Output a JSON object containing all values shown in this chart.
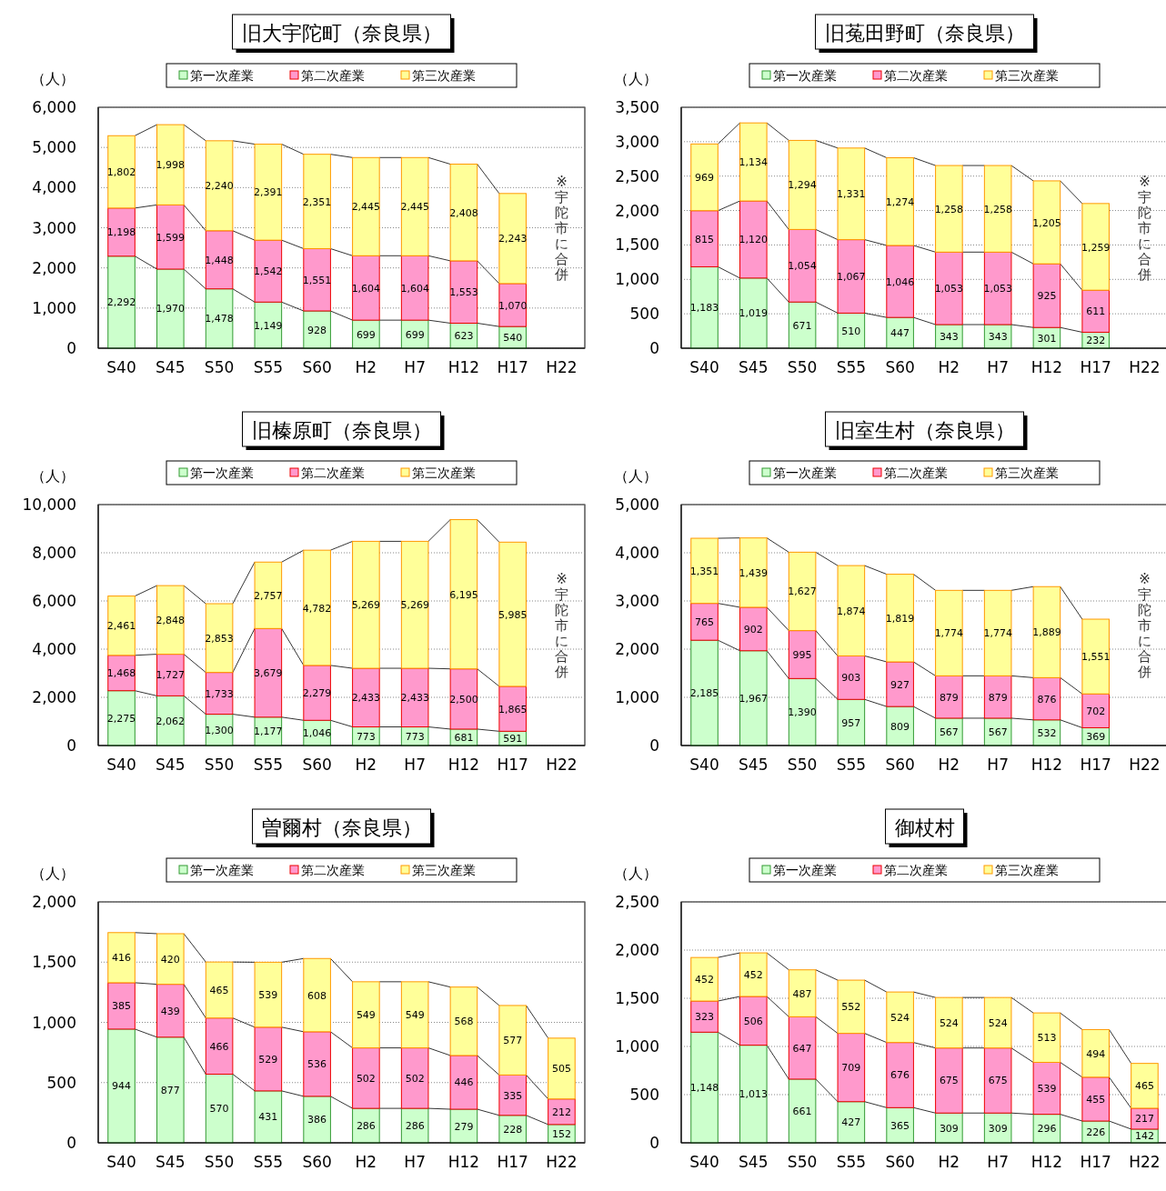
{
  "chart_data": [
    {
      "type": "bar",
      "stacked": true,
      "title": "旧大宇陀町（奈良県）",
      "ylabel": "（人）",
      "categories": [
        "S40",
        "S45",
        "S50",
        "S55",
        "S60",
        "H2",
        "H7",
        "H12",
        "H17",
        "H22"
      ],
      "ylim": [
        0,
        6000
      ],
      "yticks": [
        {
          "value": 0,
          "label": "0"
        },
        {
          "value": 1000,
          "label": "1,000"
        },
        {
          "value": 2000,
          "label": "2,000"
        },
        {
          "value": 3000,
          "label": "3,000"
        },
        {
          "value": 4000,
          "label": "4,000"
        },
        {
          "value": 5000,
          "label": "5,000"
        },
        {
          "value": 6000,
          "label": "6,000"
        }
      ],
      "grid": "y",
      "legend": "top",
      "annotations": [
        "※宇陀市に合併"
      ],
      "series": [
        {
          "name": "第一次産業",
          "color": "#ccffcc",
          "values": [
            2292,
            1970,
            1478,
            1149,
            928,
            699,
            699,
            623,
            540,
            null
          ],
          "value_labels": [
            "2,292",
            "1,970",
            "1,478",
            "1,149",
            "928",
            "699",
            "699",
            "623",
            "540",
            null
          ]
        },
        {
          "name": "第二次産業",
          "color": "#ff99cc",
          "values": [
            1198,
            1599,
            1448,
            1542,
            1551,
            1604,
            1604,
            1553,
            1070,
            null
          ],
          "value_labels": [
            "1,198",
            "1,599",
            "1,448",
            "1,542",
            "1,551",
            "1,604",
            "1,604",
            "1,553",
            "1,070",
            null
          ]
        },
        {
          "name": "第三次産業",
          "color": "#ffff99",
          "values": [
            1802,
            1998,
            2240,
            2391,
            2351,
            2445,
            2445,
            2408,
            2243,
            null
          ],
          "value_labels": [
            "1,802",
            "1,998",
            "2,240",
            "2,391",
            "2,351",
            "2,445",
            "2,445",
            "2,408",
            "2,243",
            null
          ]
        }
      ]
    },
    {
      "type": "bar",
      "stacked": true,
      "title": "旧菟田野町（奈良県）",
      "ylabel": "（人）",
      "categories": [
        "S40",
        "S45",
        "S50",
        "S55",
        "S60",
        "H2",
        "H7",
        "H12",
        "H17",
        "H22"
      ],
      "ylim": [
        0,
        3500
      ],
      "yticks": [
        {
          "value": 0,
          "label": "0"
        },
        {
          "value": 500,
          "label": "500"
        },
        {
          "value": 1000,
          "label": "1,000"
        },
        {
          "value": 1500,
          "label": "1,500"
        },
        {
          "value": 2000,
          "label": "2,000"
        },
        {
          "value": 2500,
          "label": "2,500"
        },
        {
          "value": 3000,
          "label": "3,000"
        },
        {
          "value": 3500,
          "label": "3,500"
        }
      ],
      "grid": "y",
      "legend": "top",
      "annotations": [
        "※宇陀市に合併"
      ],
      "series": [
        {
          "name": "第一次産業",
          "color": "#ccffcc",
          "values": [
            1183,
            1019,
            671,
            510,
            447,
            343,
            343,
            301,
            232,
            null
          ],
          "value_labels": [
            "1,183",
            "1,019",
            "671",
            "510",
            "447",
            "343",
            "343",
            "301",
            "232",
            null
          ]
        },
        {
          "name": "第二次産業",
          "color": "#ff99cc",
          "values": [
            815,
            1120,
            1054,
            1067,
            1046,
            1053,
            1053,
            925,
            611,
            null
          ],
          "value_labels": [
            "815",
            "1,120",
            "1,054",
            "1,067",
            "1,046",
            "1,053",
            "1,053",
            "925",
            "611",
            null
          ]
        },
        {
          "name": "第三次産業",
          "color": "#ffff99",
          "values": [
            969,
            1134,
            1294,
            1331,
            1274,
            1258,
            1258,
            1205,
            1259,
            null
          ],
          "value_labels": [
            "969",
            "1,134",
            "1,294",
            "1,331",
            "1,274",
            "1,258",
            "1,258",
            "1,205",
            "1,259",
            null
          ]
        }
      ]
    },
    {
      "type": "bar",
      "stacked": true,
      "title": "旧榛原町（奈良県）",
      "ylabel": "（人）",
      "categories": [
        "S40",
        "S45",
        "S50",
        "S55",
        "S60",
        "H2",
        "H7",
        "H12",
        "H17",
        "H22"
      ],
      "ylim": [
        0,
        10000
      ],
      "yticks": [
        {
          "value": 0,
          "label": "0"
        },
        {
          "value": 2000,
          "label": "2,000"
        },
        {
          "value": 4000,
          "label": "4,000"
        },
        {
          "value": 6000,
          "label": "6,000"
        },
        {
          "value": 8000,
          "label": "8,000"
        },
        {
          "value": 10000,
          "label": "10,000"
        }
      ],
      "grid": "y",
      "legend": "top",
      "annotations": [
        "※宇陀市に合併"
      ],
      "series": [
        {
          "name": "第一次産業",
          "color": "#ccffcc",
          "values": [
            2275,
            2062,
            1300,
            1177,
            1046,
            773,
            773,
            681,
            591,
            null
          ],
          "value_labels": [
            "2,275",
            "2,062",
            "1,300",
            "1,177",
            "1,046",
            "773",
            "773",
            "681",
            "591",
            null
          ]
        },
        {
          "name": "第二次産業",
          "color": "#ff99cc",
          "values": [
            1468,
            1727,
            1733,
            3679,
            2279,
            2433,
            2433,
            2500,
            1865,
            null
          ],
          "value_labels": [
            "1,468",
            "1,727",
            "1,733",
            "3,679",
            "2,279",
            "2,433",
            "2,433",
            "2,500",
            "1,865",
            null
          ]
        },
        {
          "name": "第三次産業",
          "color": "#ffff99",
          "values": [
            2461,
            2848,
            2853,
            2757,
            4782,
            5269,
            5269,
            6195,
            5985,
            null
          ],
          "value_labels": [
            "2,461",
            "2,848",
            "2,853",
            "2,757",
            "4,782",
            "5,269",
            "5,269",
            "6,195",
            "5,985",
            null
          ]
        }
      ]
    },
    {
      "type": "bar",
      "stacked": true,
      "title": "旧室生村（奈良県）",
      "ylabel": "（人）",
      "categories": [
        "S40",
        "S45",
        "S50",
        "S55",
        "S60",
        "H2",
        "H7",
        "H12",
        "H17",
        "H22"
      ],
      "ylim": [
        0,
        5000
      ],
      "yticks": [
        {
          "value": 0,
          "label": "0"
        },
        {
          "value": 1000,
          "label": "1,000"
        },
        {
          "value": 2000,
          "label": "2,000"
        },
        {
          "value": 3000,
          "label": "3,000"
        },
        {
          "value": 4000,
          "label": "4,000"
        },
        {
          "value": 5000,
          "label": "5,000"
        }
      ],
      "grid": "y",
      "legend": "top",
      "annotations": [
        "※宇陀市に合併"
      ],
      "series": [
        {
          "name": "第一次産業",
          "color": "#ccffcc",
          "values": [
            2185,
            1967,
            1390,
            957,
            809,
            567,
            567,
            532,
            369,
            null
          ],
          "value_labels": [
            "2,185",
            "1,967",
            "1,390",
            "957",
            "809",
            "567",
            "567",
            "532",
            "369",
            null
          ]
        },
        {
          "name": "第二次産業",
          "color": "#ff99cc",
          "values": [
            765,
            902,
            995,
            903,
            927,
            879,
            879,
            876,
            702,
            null
          ],
          "value_labels": [
            "765",
            "902",
            "995",
            "903",
            "927",
            "879",
            "879",
            "876",
            "702",
            null
          ]
        },
        {
          "name": "第三次産業",
          "color": "#ffff99",
          "values": [
            1351,
            1439,
            1627,
            1874,
            1819,
            1774,
            1774,
            1889,
            1551,
            null
          ],
          "value_labels": [
            "1,351",
            "1,439",
            "1,627",
            "1,874",
            "1,819",
            "1,774",
            "1,774",
            "1,889",
            "1,551",
            null
          ]
        }
      ]
    },
    {
      "type": "bar",
      "stacked": true,
      "title": "曽爾村（奈良県）",
      "ylabel": "（人）",
      "categories": [
        "S40",
        "S45",
        "S50",
        "S55",
        "S60",
        "H2",
        "H7",
        "H12",
        "H17",
        "H22"
      ],
      "ylim": [
        0,
        2000
      ],
      "yticks": [
        {
          "value": 0,
          "label": "0"
        },
        {
          "value": 500,
          "label": "500"
        },
        {
          "value": 1000,
          "label": "1,000"
        },
        {
          "value": 1500,
          "label": "1,500"
        },
        {
          "value": 2000,
          "label": "2,000"
        }
      ],
      "grid": "y",
      "legend": "top",
      "data_labels": true,
      "series": [
        {
          "name": "第一次産業",
          "color": "#ccffcc",
          "values": [
            944,
            877,
            570,
            431,
            386,
            286,
            286,
            279,
            228,
            152
          ]
        },
        {
          "name": "第二次産業",
          "color": "#ff99cc",
          "values": [
            385,
            439,
            466,
            529,
            536,
            502,
            502,
            446,
            335,
            212
          ]
        },
        {
          "name": "第三次産業",
          "color": "#ffff99",
          "values": [
            416,
            420,
            465,
            539,
            608,
            549,
            549,
            568,
            577,
            505
          ]
        }
      ]
    },
    {
      "type": "bar",
      "stacked": true,
      "title": "御杖村",
      "ylabel": "（人）",
      "categories": [
        "S40",
        "S45",
        "S50",
        "S55",
        "S60",
        "H2",
        "H7",
        "H12",
        "H17",
        "H22"
      ],
      "ylim": [
        0,
        2500
      ],
      "yticks": [
        {
          "value": 0,
          "label": "0"
        },
        {
          "value": 500,
          "label": "500"
        },
        {
          "value": 1000,
          "label": "1,000"
        },
        {
          "value": 1500,
          "label": "1,500"
        },
        {
          "value": 2000,
          "label": "2,000"
        },
        {
          "value": 2500,
          "label": "2,500"
        }
      ],
      "grid": "y",
      "legend": "top",
      "series": [
        {
          "name": "第一次産業",
          "color": "#ccffcc",
          "values": [
            1148,
            1013,
            661,
            427,
            365,
            309,
            309,
            296,
            226,
            142
          ],
          "value_labels": [
            "1,148",
            "1,013",
            "661",
            "427",
            "365",
            "309",
            "309",
            "296",
            "226",
            "142"
          ]
        },
        {
          "name": "第二次産業",
          "color": "#ff99cc",
          "values": [
            323,
            506,
            647,
            709,
            676,
            675,
            675,
            539,
            455,
            217
          ],
          "value_labels": [
            "323",
            "506",
            "647",
            "709",
            "676",
            "675",
            "675",
            "539",
            "455",
            "217"
          ]
        },
        {
          "name": "第三次産業",
          "color": "#ffff99",
          "values": [
            452,
            452,
            487,
            552,
            524,
            524,
            524,
            513,
            494,
            465
          ],
          "value_labels": [
            "452",
            "452",
            "487",
            "552",
            "524",
            "524",
            "524",
            "513",
            "494",
            "465"
          ]
        }
      ]
    }
  ]
}
